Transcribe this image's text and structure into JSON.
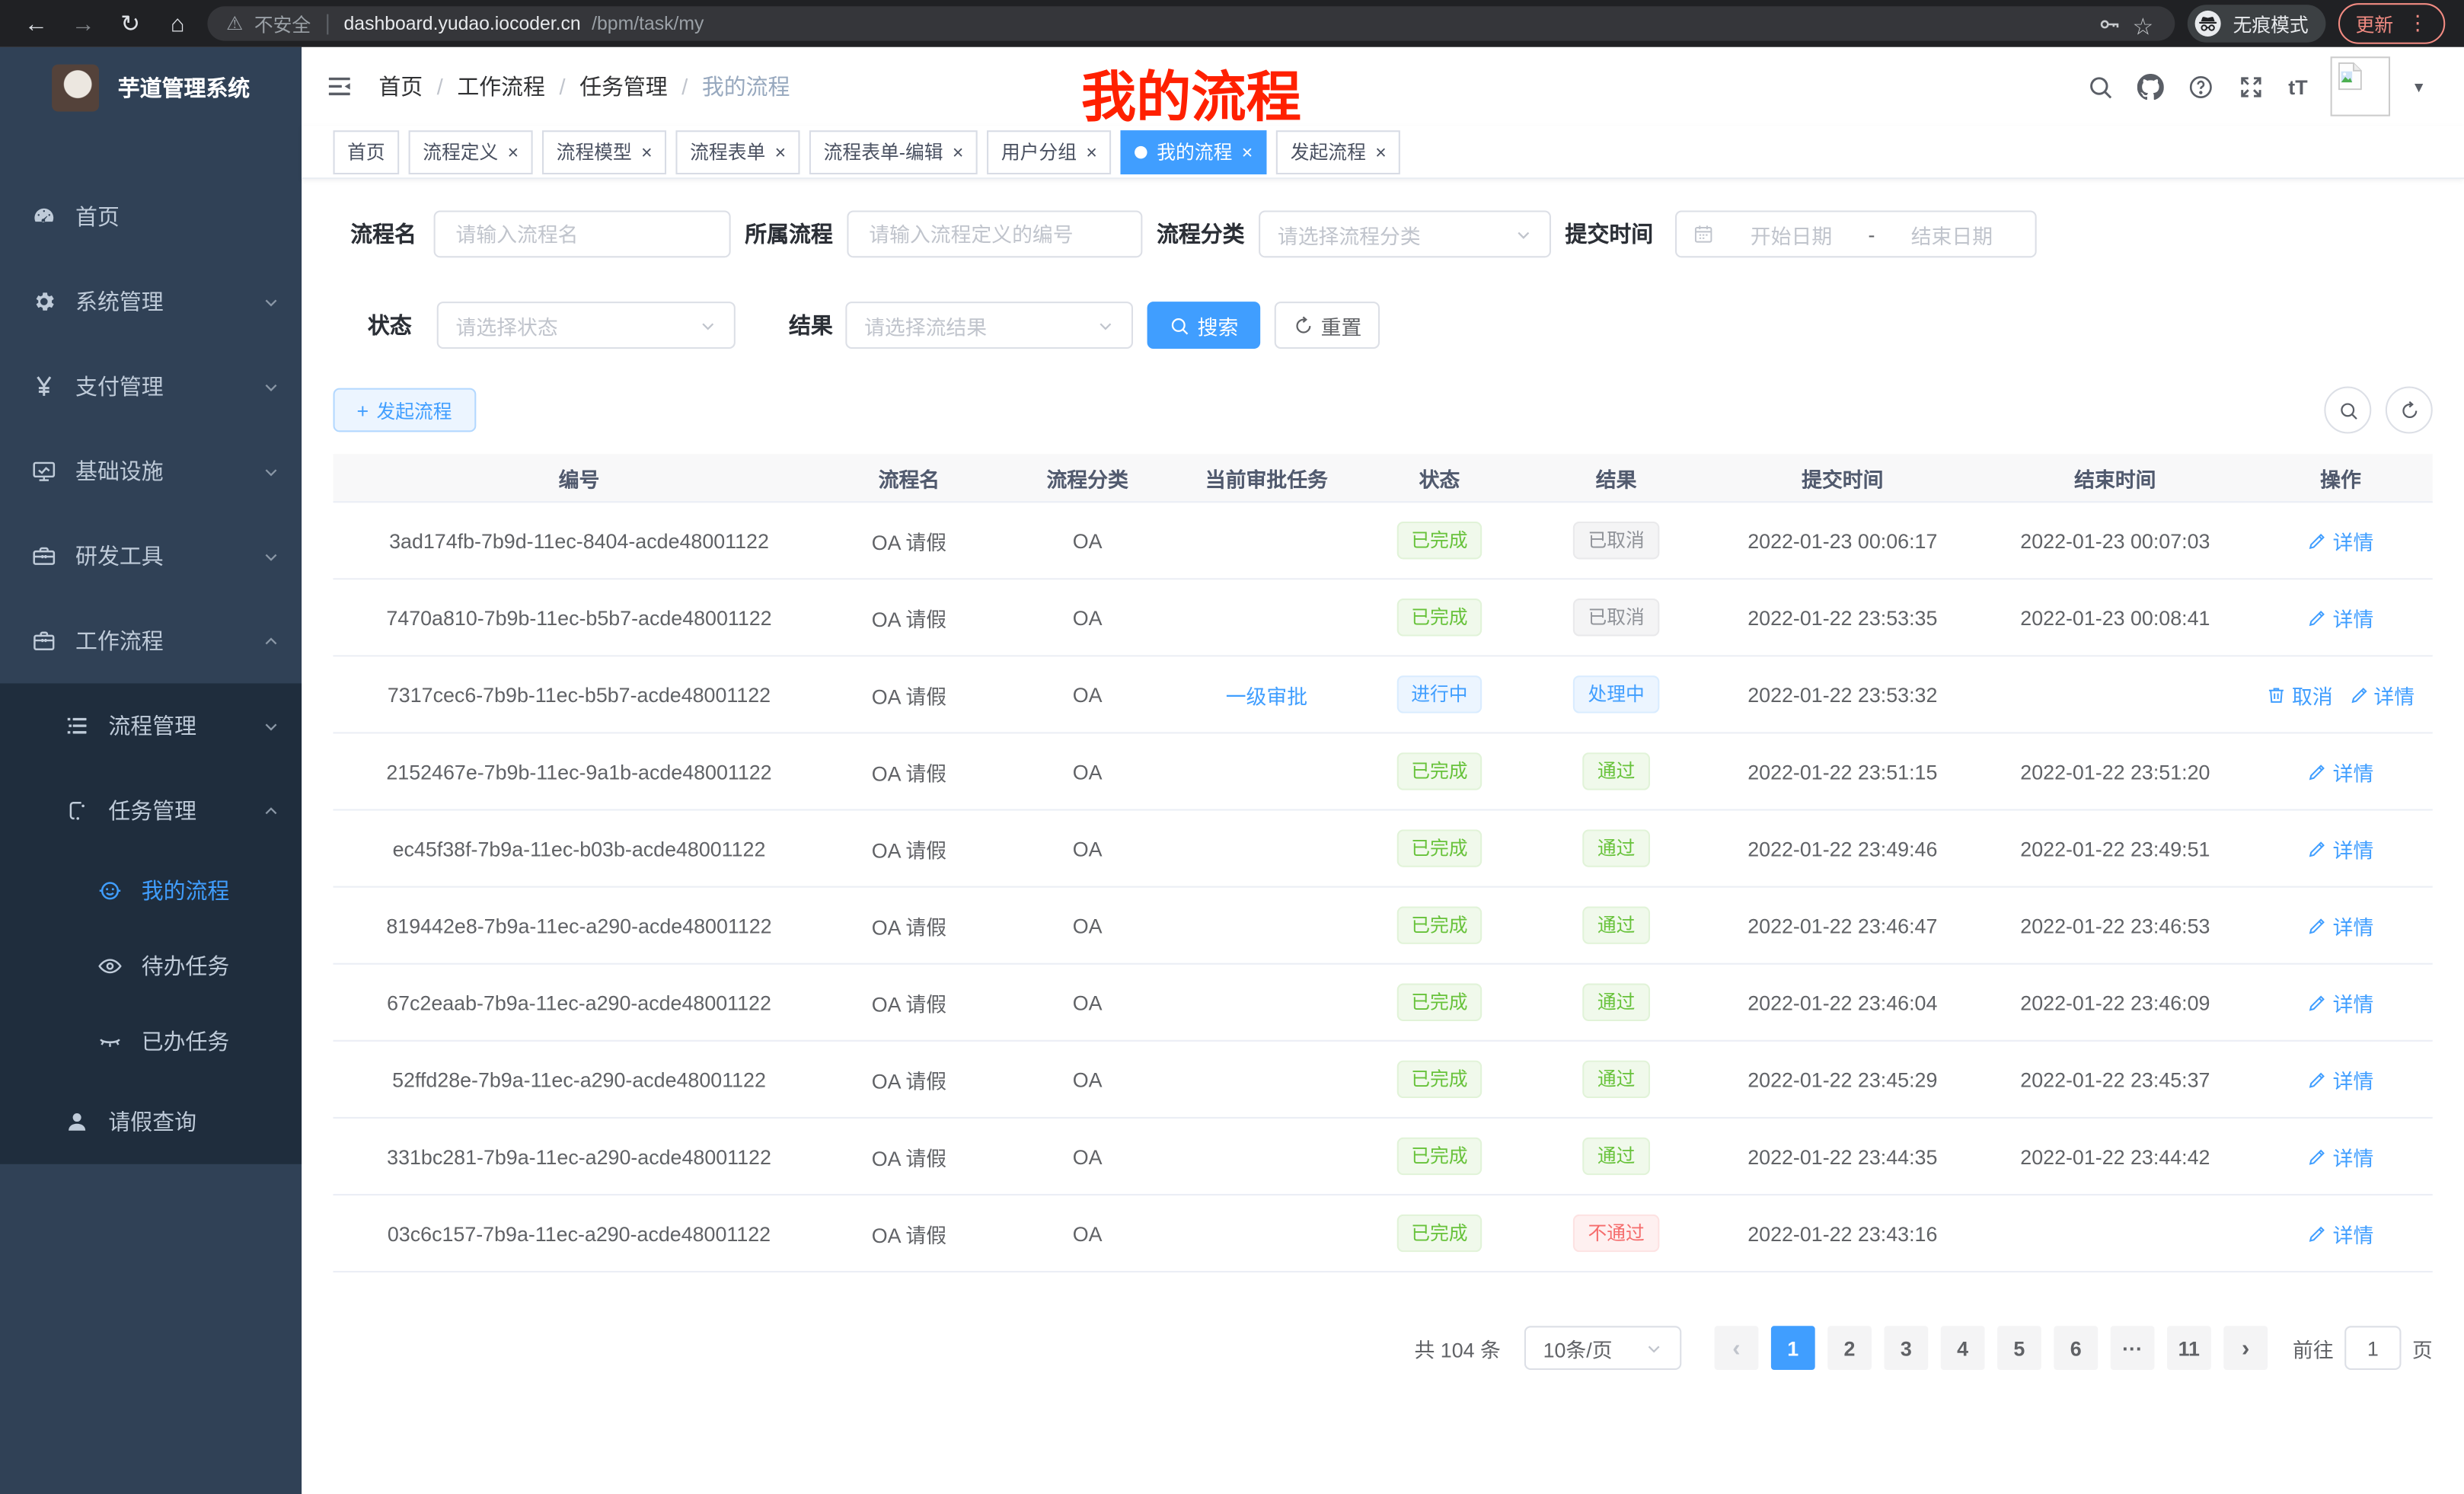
{
  "browser": {
    "security_label": "不安全",
    "url_host": "dashboard.yudao.iocoder.cn",
    "url_path": "/bpm/task/my",
    "incognito_label": "无痕模式",
    "update_label": "更新"
  },
  "sidebar": {
    "title": "芋道管理系统",
    "menu": [
      {
        "label": "首页",
        "icon": "dashboard",
        "level": 1,
        "sub": false
      },
      {
        "label": "系统管理",
        "icon": "gear",
        "level": 1,
        "sub": false,
        "chevron": "down"
      },
      {
        "label": "支付管理",
        "icon": "yen",
        "level": 1,
        "sub": false,
        "chevron": "down"
      },
      {
        "label": "基础设施",
        "icon": "monitor",
        "level": 1,
        "sub": false,
        "chevron": "down"
      },
      {
        "label": "研发工具",
        "icon": "toolbox",
        "level": 1,
        "sub": false,
        "chevron": "down"
      },
      {
        "label": "工作流程",
        "icon": "briefcase",
        "level": 1,
        "sub": false,
        "chevron": "up"
      },
      {
        "label": "流程管理",
        "icon": "list",
        "level": 2,
        "sub": true,
        "chevron": "down"
      },
      {
        "label": "任务管理",
        "icon": "flow",
        "level": 2,
        "sub": true,
        "chevron": "up"
      },
      {
        "label": "我的流程",
        "icon": "face",
        "level": 3,
        "sub": true,
        "active": true
      },
      {
        "label": "待办任务",
        "icon": "eye",
        "level": 3,
        "sub": true
      },
      {
        "label": "已办任务",
        "icon": "eye-closed",
        "level": 3,
        "sub": true
      },
      {
        "label": "请假查询",
        "icon": "user",
        "level": 2,
        "sub": true
      }
    ]
  },
  "navbar": {
    "breadcrumb": [
      "首页",
      "工作流程",
      "任务管理",
      "我的流程"
    ],
    "icons": [
      "search",
      "github",
      "question",
      "fullscreen",
      "font-size"
    ],
    "font_size_glyph": "tT"
  },
  "annotation": {
    "text": "我的流程",
    "color": "#ff2000"
  },
  "tabs": [
    {
      "label": "首页",
      "closable": false,
      "active": false
    },
    {
      "label": "流程定义",
      "closable": true,
      "active": false
    },
    {
      "label": "流程模型",
      "closable": true,
      "active": false
    },
    {
      "label": "流程表单",
      "closable": true,
      "active": false
    },
    {
      "label": "流程表单-编辑",
      "closable": true,
      "active": false
    },
    {
      "label": "用户分组",
      "closable": true,
      "active": false
    },
    {
      "label": "我的流程",
      "closable": true,
      "active": true
    },
    {
      "label": "发起流程",
      "closable": true,
      "active": false
    }
  ],
  "filters": {
    "name_label": "流程名",
    "name_placeholder": "请输入流程名",
    "def_label": "所属流程",
    "def_placeholder": "请输入流程定义的编号",
    "category_label": "流程分类",
    "category_placeholder": "请选择流程分类",
    "time_label": "提交时间",
    "time_start_placeholder": "开始日期",
    "time_separator": "-",
    "time_end_placeholder": "结束日期",
    "status_label": "状态",
    "status_placeholder": "请选择状态",
    "result_label": "结果",
    "result_placeholder": "请选择流结果",
    "search_label": "搜索",
    "reset_label": "重置"
  },
  "toolbar": {
    "create_label": "发起流程"
  },
  "table": {
    "columns": [
      "编号",
      "流程名",
      "流程分类",
      "当前审批任务",
      "状态",
      "结果",
      "提交时间",
      "结束时间",
      "操作"
    ],
    "rows": [
      {
        "id": "3ad174fb-7b9d-11ec-8404-acde48001122",
        "name": "OA 请假",
        "category": "OA",
        "task": "",
        "status": {
          "text": "已完成",
          "type": "success"
        },
        "result": {
          "text": "已取消",
          "type": "info"
        },
        "submit_time": "2022-01-23 00:06:17",
        "end_time": "2022-01-23 00:07:03",
        "actions": [
          {
            "label": "详情",
            "icon": "edit"
          }
        ]
      },
      {
        "id": "7470a810-7b9b-11ec-b5b7-acde48001122",
        "name": "OA 请假",
        "category": "OA",
        "task": "",
        "status": {
          "text": "已完成",
          "type": "success"
        },
        "result": {
          "text": "已取消",
          "type": "info"
        },
        "submit_time": "2022-01-22 23:53:35",
        "end_time": "2022-01-23 00:08:41",
        "actions": [
          {
            "label": "详情",
            "icon": "edit"
          }
        ]
      },
      {
        "id": "7317cec6-7b9b-11ec-b5b7-acde48001122",
        "name": "OA 请假",
        "category": "OA",
        "task": "一级审批",
        "status": {
          "text": "进行中",
          "type": "primary"
        },
        "result": {
          "text": "处理中",
          "type": "primary"
        },
        "submit_time": "2022-01-22 23:53:32",
        "end_time": "",
        "actions": [
          {
            "label": "取消",
            "icon": "trash"
          },
          {
            "label": "详情",
            "icon": "edit"
          }
        ]
      },
      {
        "id": "2152467e-7b9b-11ec-9a1b-acde48001122",
        "name": "OA 请假",
        "category": "OA",
        "task": "",
        "status": {
          "text": "已完成",
          "type": "success"
        },
        "result": {
          "text": "通过",
          "type": "success"
        },
        "submit_time": "2022-01-22 23:51:15",
        "end_time": "2022-01-22 23:51:20",
        "actions": [
          {
            "label": "详情",
            "icon": "edit"
          }
        ]
      },
      {
        "id": "ec45f38f-7b9a-11ec-b03b-acde48001122",
        "name": "OA 请假",
        "category": "OA",
        "task": "",
        "status": {
          "text": "已完成",
          "type": "success"
        },
        "result": {
          "text": "通过",
          "type": "success"
        },
        "submit_time": "2022-01-22 23:49:46",
        "end_time": "2022-01-22 23:49:51",
        "actions": [
          {
            "label": "详情",
            "icon": "edit"
          }
        ]
      },
      {
        "id": "819442e8-7b9a-11ec-a290-acde48001122",
        "name": "OA 请假",
        "category": "OA",
        "task": "",
        "status": {
          "text": "已完成",
          "type": "success"
        },
        "result": {
          "text": "通过",
          "type": "success"
        },
        "submit_time": "2022-01-22 23:46:47",
        "end_time": "2022-01-22 23:46:53",
        "actions": [
          {
            "label": "详情",
            "icon": "edit"
          }
        ]
      },
      {
        "id": "67c2eaab-7b9a-11ec-a290-acde48001122",
        "name": "OA 请假",
        "category": "OA",
        "task": "",
        "status": {
          "text": "已完成",
          "type": "success"
        },
        "result": {
          "text": "通过",
          "type": "success"
        },
        "submit_time": "2022-01-22 23:46:04",
        "end_time": "2022-01-22 23:46:09",
        "actions": [
          {
            "label": "详情",
            "icon": "edit"
          }
        ]
      },
      {
        "id": "52ffd28e-7b9a-11ec-a290-acde48001122",
        "name": "OA 请假",
        "category": "OA",
        "task": "",
        "status": {
          "text": "已完成",
          "type": "success"
        },
        "result": {
          "text": "通过",
          "type": "success"
        },
        "submit_time": "2022-01-22 23:45:29",
        "end_time": "2022-01-22 23:45:37",
        "actions": [
          {
            "label": "详情",
            "icon": "edit"
          }
        ]
      },
      {
        "id": "331bc281-7b9a-11ec-a290-acde48001122",
        "name": "OA 请假",
        "category": "OA",
        "task": "",
        "status": {
          "text": "已完成",
          "type": "success"
        },
        "result": {
          "text": "通过",
          "type": "success"
        },
        "submit_time": "2022-01-22 23:44:35",
        "end_time": "2022-01-22 23:44:42",
        "actions": [
          {
            "label": "详情",
            "icon": "edit"
          }
        ]
      },
      {
        "id": "03c6c157-7b9a-11ec-a290-acde48001122",
        "name": "OA 请假",
        "category": "OA",
        "task": "",
        "status": {
          "text": "已完成",
          "type": "success"
        },
        "result": {
          "text": "不通过",
          "type": "danger"
        },
        "submit_time": "2022-01-22 23:43:16",
        "end_time": "",
        "actions": [
          {
            "label": "详情",
            "icon": "edit"
          }
        ]
      }
    ]
  },
  "pagination": {
    "total_label": "共 104 条",
    "page_size_label": "10条/页",
    "pages": [
      "1",
      "2",
      "3",
      "4",
      "5",
      "6",
      "···",
      "11"
    ],
    "active_page": "1",
    "goto_label": "前往",
    "goto_value": "1",
    "goto_unit": "页"
  },
  "colors": {
    "primary": "#409eff",
    "success": "#67c23a",
    "danger": "#f56c6c",
    "info": "#909399",
    "annotation": "#ff2000"
  }
}
